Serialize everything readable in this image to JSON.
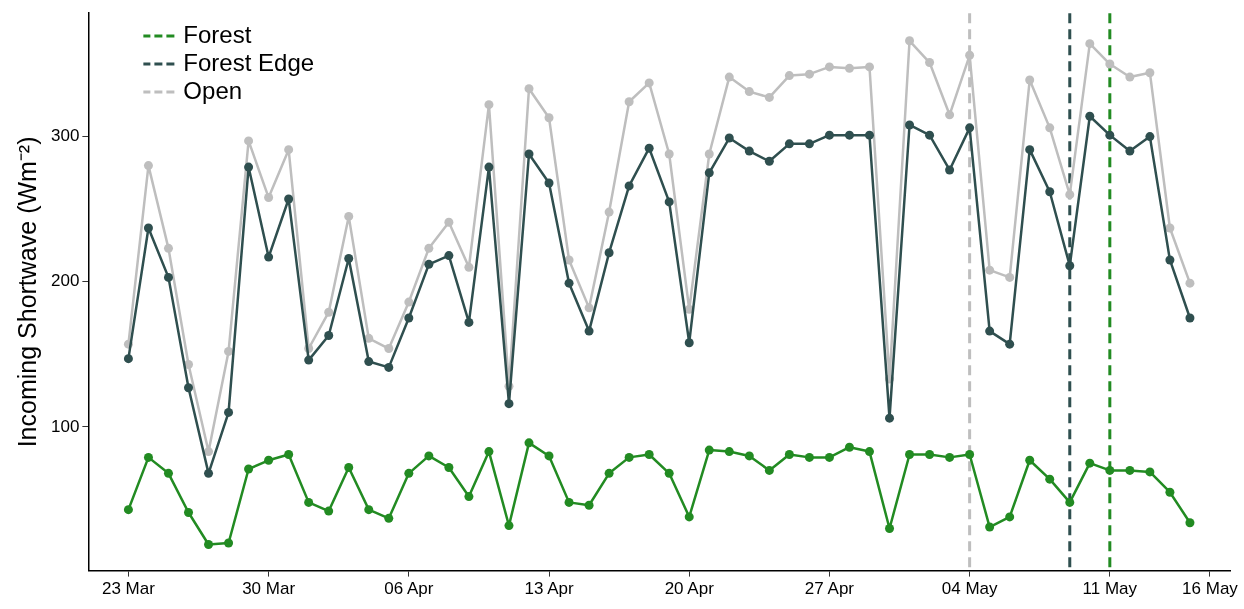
{
  "chart_data": {
    "type": "line",
    "ylabel": "Incoming Shortwave (Wm⁻²)",
    "x": [
      "--03-23",
      "--03-24",
      "--03-25",
      "--03-26",
      "--03-27",
      "--03-28",
      "--03-29",
      "--03-30",
      "--03-31",
      "--04-01",
      "--04-02",
      "--04-03",
      "--04-04",
      "--04-05",
      "--04-06",
      "--04-07",
      "--04-08",
      "--04-09",
      "--04-10",
      "--04-11",
      "--04-12",
      "--04-13",
      "--04-14",
      "--04-15",
      "--04-16",
      "--04-17",
      "--04-18",
      "--04-19",
      "--04-20",
      "--04-21",
      "--04-22",
      "--04-23",
      "--04-24",
      "--04-25",
      "--04-26",
      "--04-27",
      "--04-28",
      "--04-29",
      "--04-30",
      "--05-01",
      "--05-02",
      "--05-03",
      "--05-04",
      "--05-05",
      "--05-06",
      "--05-07",
      "--05-08",
      "--05-09",
      "--05-10",
      "--05-11",
      "--05-12",
      "--05-13",
      "--05-14",
      "--05-15"
    ],
    "series": [
      {
        "name": "Forest",
        "color": "#228b22",
        "values": [
          43,
          79,
          68,
          41,
          19,
          20,
          71,
          77,
          81,
          48,
          42,
          72,
          43,
          37,
          68,
          80,
          72,
          52,
          83,
          32,
          89,
          80,
          48,
          46,
          68,
          79,
          81,
          68,
          38,
          84,
          83,
          80,
          70,
          81,
          79,
          79,
          86,
          83,
          30,
          81,
          81,
          79,
          81,
          31,
          38,
          77,
          64,
          48,
          75,
          70,
          70,
          69,
          55,
          34
        ]
      },
      {
        "name": "Forest Edge",
        "color": "#2f4f4f",
        "values": [
          147,
          237,
          203,
          127,
          68,
          110,
          279,
          217,
          257,
          146,
          163,
          216,
          145,
          141,
          175,
          212,
          218,
          172,
          279,
          116,
          288,
          268,
          199,
          166,
          220,
          266,
          292,
          255,
          158,
          275,
          299,
          290,
          283,
          295,
          295,
          301,
          301,
          301,
          106,
          308,
          301,
          277,
          306,
          166,
          157,
          291,
          262,
          211,
          314,
          301,
          290,
          300,
          215,
          175
        ]
      },
      {
        "name": "Open",
        "color": "#bebebe",
        "values": [
          157,
          280,
          223,
          143,
          83,
          152,
          297,
          258,
          291,
          154,
          179,
          245,
          161,
          154,
          186,
          223,
          241,
          210,
          322,
          128,
          333,
          313,
          215,
          182,
          248,
          324,
          337,
          288,
          181,
          288,
          341,
          331,
          327,
          342,
          343,
          348,
          347,
          348,
          133,
          366,
          351,
          315,
          356,
          208,
          203,
          339,
          306,
          260,
          364,
          350,
          341,
          344,
          237,
          199
        ]
      }
    ],
    "xlim": [
      "--03-21",
      "--05-17"
    ],
    "xticks": [
      {
        "value": "--03-23",
        "label": "23 Mar"
      },
      {
        "value": "--03-30",
        "label": "30 Mar"
      },
      {
        "value": "--04-06",
        "label": "06 Apr"
      },
      {
        "value": "--04-13",
        "label": "13 Apr"
      },
      {
        "value": "--04-20",
        "label": "20 Apr"
      },
      {
        "value": "--04-27",
        "label": "27 Apr"
      },
      {
        "value": "--05-04",
        "label": "04 May"
      },
      {
        "value": "--05-11",
        "label": "11 May"
      },
      {
        "value": "--05-16",
        "label": "16 May"
      }
    ],
    "ylim": [
      1,
      385
    ],
    "yticks": [
      100,
      200,
      300
    ],
    "ref_lines": [
      {
        "axis": "x",
        "value": "--05-04",
        "color": "#bebebe",
        "line_style": "dashed"
      },
      {
        "axis": "x",
        "value": "--05-09",
        "color": "#2f4f4f",
        "line_style": "dashed"
      },
      {
        "axis": "x",
        "value": "--05-11",
        "color": "#228b22",
        "line_style": "dashed"
      }
    ],
    "grid": false,
    "legend": "top left",
    "marker": "circle",
    "line_style": "solid"
  }
}
